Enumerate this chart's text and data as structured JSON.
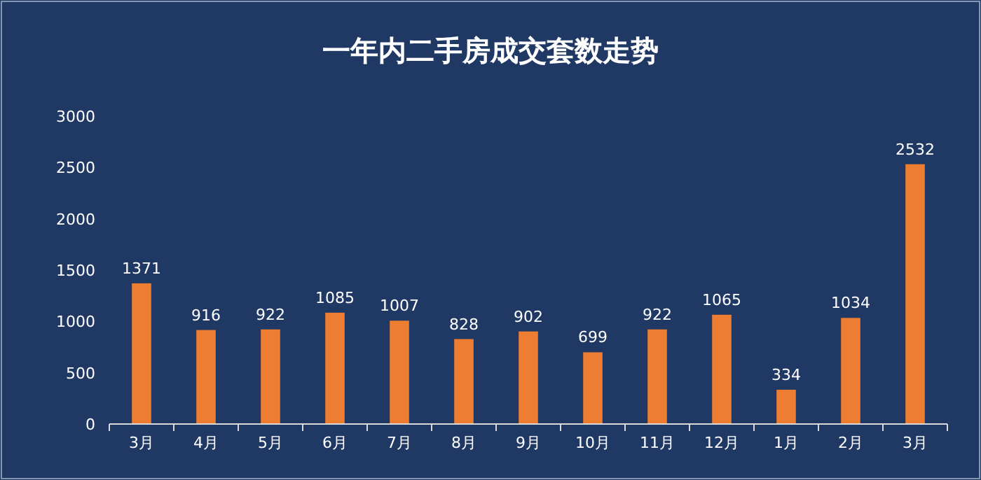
{
  "chart_data": {
    "type": "bar",
    "title": "一年内二手房成交套数走势",
    "categories": [
      "3月",
      "4月",
      "5月",
      "6月",
      "7月",
      "8月",
      "9月",
      "10月",
      "11月",
      "12月",
      "1月",
      "2月",
      "3月"
    ],
    "values": [
      1371,
      916,
      922,
      1085,
      1007,
      828,
      902,
      699,
      922,
      1065,
      334,
      1034,
      2532
    ],
    "color": "#ed7d31",
    "ylim": [
      0,
      3000
    ],
    "yticks": [
      0,
      500,
      1000,
      1500,
      2000,
      2500,
      3000
    ],
    "data_labels": true,
    "grid": false
  }
}
